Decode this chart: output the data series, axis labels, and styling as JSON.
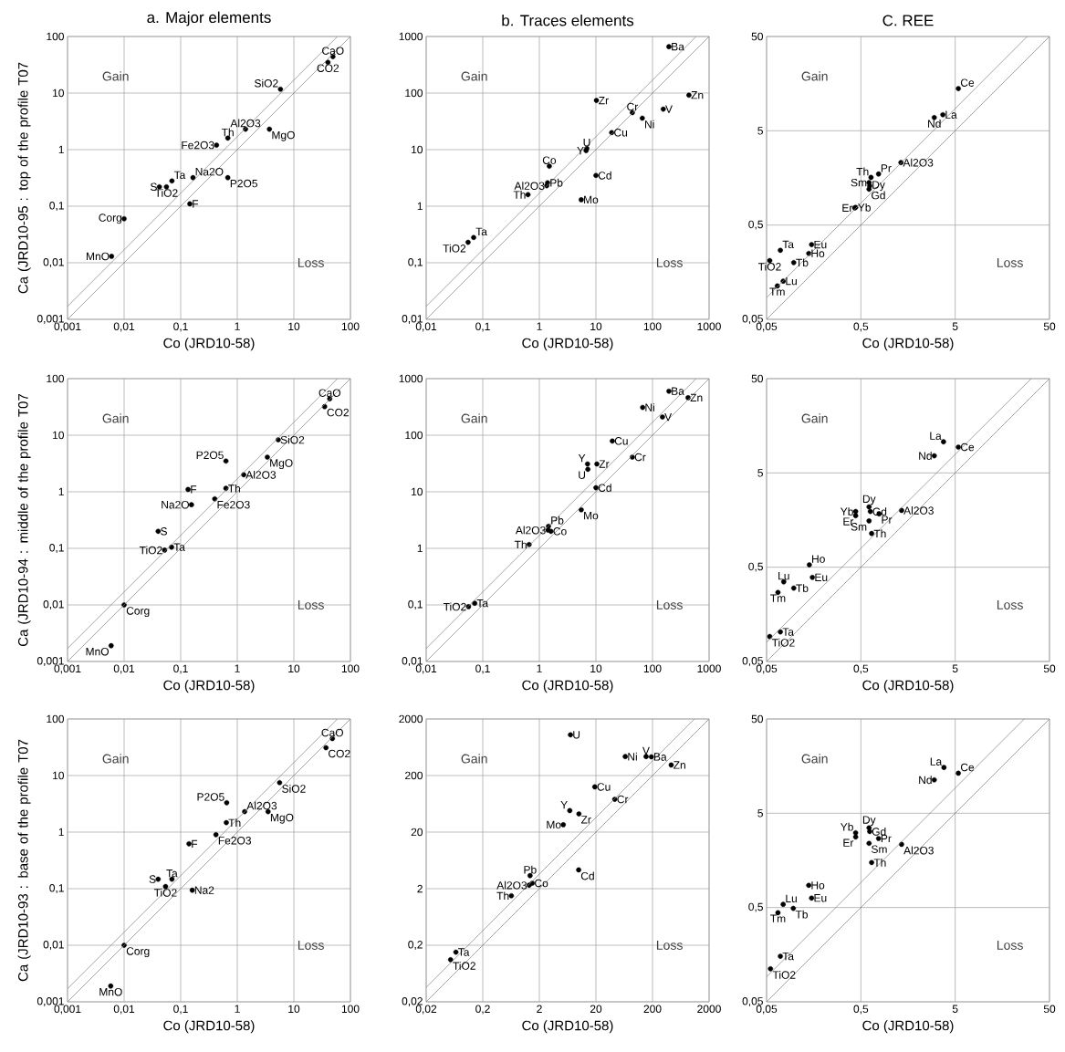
{
  "chart_data": [
    {
      "type": "scatter",
      "title": "a. Major elements",
      "xlabel": "Co (JRD10-58)",
      "ylabel": "Ca (JRD10-95 : top of the profile T07",
      "log": "xy",
      "grid": true,
      "marker": "circle",
      "xlim": [
        0.001,
        100
      ],
      "ylim": [
        0.001,
        100
      ],
      "xticks": [
        {
          "value": 0.001,
          "label": "0,001"
        },
        {
          "value": 0.01,
          "label": "0,01"
        },
        {
          "value": 0.1,
          "label": "0,1"
        },
        1,
        10,
        100
      ],
      "yticks": [
        {
          "value": 0.001,
          "label": "0,001"
        },
        {
          "value": 0.01,
          "label": "0,01"
        },
        {
          "value": 0.1,
          "label": "0,1"
        },
        1,
        10,
        100
      ],
      "series": [
        {
          "color": "#000000",
          "x": [
            49,
            40,
            5.8,
            1.4,
            3.7,
            0.68,
            0.43,
            0.165,
            0.68,
            0.07,
            0.056,
            0.042,
            0.145,
            0.01,
            0.006
          ],
          "values": [
            44,
            35,
            11.7,
            2.3,
            2.3,
            1.6,
            1.2,
            0.32,
            0.32,
            0.28,
            0.22,
            0.22,
            0.11,
            0.06,
            0.013
          ]
        },
        {
          "type": "line",
          "color": "#808080",
          "marker": "none",
          "x": [
            0.001,
            100
          ],
          "values": [
            0.001,
            100
          ]
        },
        {
          "type": "line",
          "color": "#808080",
          "marker": "none",
          "x": [
            0.001,
            59
          ],
          "values": [
            0.0017,
            100
          ]
        }
      ],
      "annotations": [
        "Gain",
        "Loss",
        {
          "text": "CaO",
          "x": 49,
          "y": 44
        },
        {
          "text": "CO2",
          "x": 40,
          "y": 35
        },
        {
          "text": "SiO2",
          "x": 5.8,
          "y": 11.7
        },
        {
          "text": "Al2O3",
          "x": 1.4,
          "y": 2.3
        },
        {
          "text": "MgO",
          "x": 3.7,
          "y": 2.3
        },
        {
          "text": "Th",
          "x": 0.68,
          "y": 1.6
        },
        {
          "text": "Fe2O3",
          "x": 0.43,
          "y": 1.2
        },
        {
          "text": "Na2O",
          "x": 0.165,
          "y": 0.32
        },
        {
          "text": "P2O5",
          "x": 0.68,
          "y": 0.32
        },
        {
          "text": "Ta",
          "x": 0.07,
          "y": 0.28
        },
        {
          "text": "TiO2",
          "x": 0.056,
          "y": 0.22
        },
        {
          "text": "S",
          "x": 0.042,
          "y": 0.22
        },
        {
          "text": "F",
          "x": 0.145,
          "y": 0.11
        },
        {
          "text": "Corg",
          "x": 0.01,
          "y": 0.06
        },
        {
          "text": "MnO",
          "x": 0.006,
          "y": 0.013
        }
      ]
    },
    {
      "type": "scatter",
      "title": "b. Traces elements",
      "xlabel": "Co (JRD10-58)",
      "log": "xy",
      "grid": true,
      "marker": "circle",
      "xlim": [
        0.01,
        1000
      ],
      "ylim": [
        0.01,
        1000
      ],
      "xticks": [
        {
          "value": 0.01,
          "label": "0,01"
        },
        {
          "value": 0.1,
          "label": "0,1"
        },
        1,
        10,
        100,
        1000
      ],
      "yticks": [
        {
          "value": 0.01,
          "label": "0,01"
        },
        {
          "value": 0.1,
          "label": "0,1"
        },
        1,
        10,
        100,
        1000
      ],
      "series": [
        {
          "color": "#000000",
          "x": [
            195,
            440,
            155,
            10.2,
            44,
            66,
            19,
            6.9,
            6.7,
            1.5,
            10,
            1.4,
            1.35,
            0.63,
            5.5,
            0.069,
            0.055
          ],
          "values": [
            660,
            92,
            52,
            74,
            45,
            36,
            20,
            10.5,
            9.6,
            5.1,
            3.5,
            2.6,
            2.3,
            1.6,
            1.3,
            0.28,
            0.23
          ]
        },
        {
          "type": "line",
          "color": "#808080",
          "marker": "none",
          "x": [
            0.01,
            1000
          ],
          "values": [
            0.01,
            1000
          ]
        },
        {
          "type": "line",
          "color": "#808080",
          "marker": "none",
          "x": [
            0.01,
            590
          ],
          "values": [
            0.017,
            1000
          ]
        }
      ],
      "annotations": [
        "Gain",
        "Loss",
        {
          "text": "Ba",
          "x": 195,
          "y": 660
        },
        {
          "text": "Zn",
          "x": 440,
          "y": 92
        },
        {
          "text": "V",
          "x": 155,
          "y": 52
        },
        {
          "text": "Zr",
          "x": 10.2,
          "y": 74
        },
        {
          "text": "Cr",
          "x": 44,
          "y": 45
        },
        {
          "text": "Ni",
          "x": 66,
          "y": 36
        },
        {
          "text": "Cu",
          "x": 19,
          "y": 20
        },
        {
          "text": "U",
          "x": 6.9,
          "y": 10.5
        },
        {
          "text": "Y",
          "x": 6.7,
          "y": 9.6
        },
        {
          "text": "Co",
          "x": 1.5,
          "y": 5.1
        },
        {
          "text": "Cd",
          "x": 10,
          "y": 3.5
        },
        {
          "text": "Pb",
          "x": 1.4,
          "y": 2.6
        },
        {
          "text": "Al2O3",
          "x": 1.35,
          "y": 2.3
        },
        {
          "text": "Th",
          "x": 0.63,
          "y": 1.6
        },
        {
          "text": "Mo",
          "x": 5.5,
          "y": 1.3
        },
        {
          "text": "Ta",
          "x": 0.069,
          "y": 0.28
        },
        {
          "text": "TiO2",
          "x": 0.055,
          "y": 0.23
        }
      ]
    },
    {
      "type": "scatter",
      "title": "C. REE",
      "xlabel": "Co (JRD10-58)",
      "log": "xy",
      "grid": true,
      "marker": "circle",
      "xlim": [
        0.05,
        50
      ],
      "ylim": [
        0.05,
        50
      ],
      "xticks": [
        {
          "value": 0.05,
          "label": "0,05"
        },
        {
          "value": 0.5,
          "label": "0,5"
        },
        5,
        50
      ],
      "yticks": [
        {
          "value": 0.05,
          "label": "0,05"
        },
        {
          "value": 0.5,
          "label": "0,5"
        },
        5,
        50
      ],
      "series": [
        {
          "color": "#000000",
          "x": [
            5.4,
            3.7,
            3.0,
            1.33,
            0.77,
            0.64,
            0.61,
            0.62,
            0.61,
            0.43,
            0.44,
            0.07,
            0.15,
            0.14,
            0.054,
            0.097,
            0.075,
            0.065
          ],
          "values": [
            14,
            7.4,
            6.9,
            2.3,
            1.74,
            1.6,
            1.41,
            1.3,
            1.2,
            0.76,
            0.77,
            0.27,
            0.31,
            0.25,
            0.21,
            0.2,
            0.127,
            0.113
          ]
        },
        {
          "type": "line",
          "color": "#808080",
          "marker": "none",
          "x": [
            0.05,
            50
          ],
          "values": [
            0.05,
            50
          ]
        },
        {
          "type": "line",
          "color": "#808080",
          "marker": "none",
          "x": [
            0.05,
            29
          ],
          "values": [
            0.085,
            50
          ]
        }
      ],
      "annotations": [
        "Gain",
        "Loss",
        {
          "text": "Ce",
          "x": 5.4,
          "y": 14
        },
        {
          "text": "La",
          "x": 3.7,
          "y": 7.4
        },
        {
          "text": "Nd",
          "x": 3.0,
          "y": 6.9
        },
        {
          "text": "Al2O3",
          "x": 1.33,
          "y": 2.3
        },
        {
          "text": "Pr",
          "x": 0.77,
          "y": 1.74
        },
        {
          "text": "Th",
          "x": 0.64,
          "y": 1.6
        },
        {
          "text": "Sm",
          "x": 0.61,
          "y": 1.41
        },
        {
          "text": "Dy",
          "x": 0.62,
          "y": 1.3
        },
        {
          "text": "Gd",
          "x": 0.61,
          "y": 1.2
        },
        {
          "text": "Er",
          "x": 0.43,
          "y": 0.76
        },
        {
          "text": "Yb",
          "x": 0.44,
          "y": 0.77
        },
        {
          "text": "Ta",
          "x": 0.07,
          "y": 0.27
        },
        {
          "text": "Eu",
          "x": 0.15,
          "y": 0.31
        },
        {
          "text": "Ho",
          "x": 0.14,
          "y": 0.25
        },
        {
          "text": "TiO2",
          "x": 0.054,
          "y": 0.21
        },
        {
          "text": "Tb",
          "x": 0.097,
          "y": 0.2
        },
        {
          "text": "Lu",
          "x": 0.075,
          "y": 0.127
        },
        {
          "text": "Tm",
          "x": 0.065,
          "y": 0.113
        }
      ]
    },
    {
      "type": "scatter",
      "xlabel": "Co (JRD10-58)",
      "ylabel": "Ca (JRD10-94 : middle of the profile T07",
      "log": "xy",
      "grid": true,
      "marker": "circle",
      "xlim": [
        0.001,
        100
      ],
      "ylim": [
        0.001,
        100
      ],
      "xticks": [
        {
          "value": 0.001,
          "label": "0,001"
        },
        {
          "value": 0.01,
          "label": "0,01"
        },
        {
          "value": 0.1,
          "label": "0,1"
        },
        1,
        10,
        100
      ],
      "yticks": [
        {
          "value": 0.001,
          "label": "0,001"
        },
        {
          "value": 0.01,
          "label": "0,01"
        },
        {
          "value": 0.1,
          "label": "0,1"
        },
        1,
        10,
        100
      ],
      "series": [
        {
          "color": "#000000",
          "x": [
            43,
            35,
            5.3,
            3.4,
            0.63,
            1.3,
            0.135,
            0.63,
            0.4,
            0.155,
            0.04,
            0.069,
            0.052,
            0.01,
            0.0059
          ],
          "values": [
            44,
            32,
            8.3,
            4.1,
            3.5,
            2.0,
            1.1,
            1.15,
            0.75,
            0.59,
            0.2,
            0.105,
            0.093,
            0.01,
            0.0019
          ]
        },
        {
          "type": "line",
          "color": "#808080",
          "marker": "none",
          "x": [
            0.001,
            100
          ],
          "values": [
            0.001,
            100
          ]
        },
        {
          "type": "line",
          "color": "#808080",
          "marker": "none",
          "x": [
            0.001,
            59
          ],
          "values": [
            0.0017,
            100
          ]
        }
      ],
      "annotations": [
        "Gain",
        "Loss",
        {
          "text": "CaO",
          "x": 43,
          "y": 44
        },
        {
          "text": "CO2",
          "x": 35,
          "y": 32
        },
        {
          "text": "SiO2",
          "x": 5.3,
          "y": 8.3
        },
        {
          "text": "MgO",
          "x": 3.4,
          "y": 4.1
        },
        {
          "text": "P2O5",
          "x": 0.63,
          "y": 3.5
        },
        {
          "text": "Al2O3",
          "x": 1.3,
          "y": 2.0
        },
        {
          "text": "F",
          "x": 0.135,
          "y": 1.1
        },
        {
          "text": "Th",
          "x": 0.63,
          "y": 1.15
        },
        {
          "text": "Fe2O3",
          "x": 0.4,
          "y": 0.75
        },
        {
          "text": "Na2O",
          "x": 0.155,
          "y": 0.59
        },
        {
          "text": "S",
          "x": 0.04,
          "y": 0.2
        },
        {
          "text": "Ta",
          "x": 0.069,
          "y": 0.105
        },
        {
          "text": "TiO2",
          "x": 0.052,
          "y": 0.093
        },
        {
          "text": "Corg",
          "x": 0.01,
          "y": 0.01
        },
        {
          "text": "MnO",
          "x": 0.0059,
          "y": 0.0019
        }
      ]
    },
    {
      "type": "scatter",
      "xlabel": "Co (JRD10-58)",
      "log": "xy",
      "grid": true,
      "marker": "circle",
      "xlim": [
        0.01,
        1000
      ],
      "ylim": [
        0.01,
        1000
      ],
      "xticks": [
        {
          "value": 0.01,
          "label": "0,01"
        },
        {
          "value": 0.1,
          "label": "0,1"
        },
        1,
        10,
        100,
        1000
      ],
      "yticks": [
        {
          "value": 0.01,
          "label": "0,01"
        },
        {
          "value": 0.1,
          "label": "0,1"
        },
        1,
        10,
        100,
        1000
      ],
      "series": [
        {
          "color": "#000000",
          "x": [
            195,
            425,
            67,
            150,
            19.5,
            44,
            7.1,
            10.4,
            7.2,
            10,
            5.5,
            1.45,
            1.42,
            1.6,
            0.66,
            0.072,
            0.056
          ],
          "values": [
            600,
            460,
            310,
            210,
            79,
            41,
            31,
            31,
            25,
            11.8,
            4.8,
            2.45,
            2.1,
            2.0,
            1.17,
            0.107,
            0.093
          ]
        },
        {
          "type": "line",
          "color": "#808080",
          "marker": "none",
          "x": [
            0.01,
            1000
          ],
          "values": [
            0.01,
            1000
          ]
        },
        {
          "type": "line",
          "color": "#808080",
          "marker": "none",
          "x": [
            0.01,
            590
          ],
          "values": [
            0.017,
            1000
          ]
        }
      ],
      "annotations": [
        "Gain",
        "Loss",
        {
          "text": "Ba",
          "x": 195,
          "y": 600
        },
        {
          "text": "Zn",
          "x": 425,
          "y": 460
        },
        {
          "text": "Ni",
          "x": 67,
          "y": 310
        },
        {
          "text": "V",
          "x": 150,
          "y": 210
        },
        {
          "text": "Cu",
          "x": 19.5,
          "y": 79
        },
        {
          "text": "Cr",
          "x": 44,
          "y": 41
        },
        {
          "text": "Y",
          "x": 7.1,
          "y": 31
        },
        {
          "text": "Zr",
          "x": 10.4,
          "y": 31
        },
        {
          "text": "U",
          "x": 7.2,
          "y": 25
        },
        {
          "text": "Cd",
          "x": 10,
          "y": 11.8
        },
        {
          "text": "Mo",
          "x": 5.5,
          "y": 4.8
        },
        {
          "text": "Pb",
          "x": 1.45,
          "y": 2.45
        },
        {
          "text": "Al2O3",
          "x": 1.42,
          "y": 2.1
        },
        {
          "text": "Co",
          "x": 1.6,
          "y": 2.0
        },
        {
          "text": "Th",
          "x": 0.66,
          "y": 1.17
        },
        {
          "text": "Ta",
          "x": 0.072,
          "y": 0.107
        },
        {
          "text": "TiO2",
          "x": 0.056,
          "y": 0.093
        }
      ]
    },
    {
      "type": "scatter",
      "xlabel": "Co (JRD10-58)",
      "log": "xy",
      "grid": true,
      "marker": "circle",
      "xlim": [
        0.05,
        50
      ],
      "ylim": [
        0.05,
        50
      ],
      "xticks": [
        {
          "value": 0.05,
          "label": "0,05"
        },
        {
          "value": 0.5,
          "label": "0,5"
        },
        5,
        50
      ],
      "yticks": [
        {
          "value": 0.05,
          "label": "0,05"
        },
        {
          "value": 0.5,
          "label": "0,5"
        },
        5,
        50
      ],
      "series": [
        {
          "color": "#000000",
          "x": [
            3.76,
            5.4,
            3.0,
            0.61,
            0.63,
            1.35,
            0.44,
            0.44,
            0.78,
            0.61,
            0.65,
            0.142,
            0.153,
            0.076,
            0.097,
            0.066,
            0.07,
            0.054
          ],
          "values": [
            10.7,
            9.4,
            7.6,
            2.18,
            1.95,
            2.0,
            1.95,
            1.76,
            1.84,
            1.55,
            1.14,
            0.53,
            0.39,
            0.35,
            0.3,
            0.27,
            0.103,
            0.092
          ]
        },
        {
          "type": "line",
          "color": "#808080",
          "marker": "none",
          "x": [
            0.05,
            50
          ],
          "values": [
            0.05,
            50
          ]
        },
        {
          "type": "line",
          "color": "#808080",
          "marker": "none",
          "x": [
            0.05,
            32
          ],
          "values": [
            0.08,
            50
          ]
        }
      ],
      "annotations": [
        "Gain",
        "Loss",
        {
          "text": "La",
          "x": 3.76,
          "y": 10.7
        },
        {
          "text": "Ce",
          "x": 5.4,
          "y": 9.4
        },
        {
          "text": "Nd",
          "x": 3.0,
          "y": 7.6
        },
        {
          "text": "Dy",
          "x": 0.61,
          "y": 2.18
        },
        {
          "text": "Gd",
          "x": 0.63,
          "y": 1.95
        },
        {
          "text": "Al2O3",
          "x": 1.35,
          "y": 2.0
        },
        {
          "text": "Yb",
          "x": 0.44,
          "y": 1.95
        },
        {
          "text": "Er",
          "x": 0.44,
          "y": 1.76
        },
        {
          "text": "Pr",
          "x": 0.78,
          "y": 1.84
        },
        {
          "text": "Sm",
          "x": 0.61,
          "y": 1.55
        },
        {
          "text": "Th",
          "x": 0.65,
          "y": 1.14
        },
        {
          "text": "Ho",
          "x": 0.142,
          "y": 0.53
        },
        {
          "text": "Eu",
          "x": 0.153,
          "y": 0.39
        },
        {
          "text": "Lu",
          "x": 0.076,
          "y": 0.35
        },
        {
          "text": "Tb",
          "x": 0.097,
          "y": 0.3
        },
        {
          "text": "Tm",
          "x": 0.066,
          "y": 0.27
        },
        {
          "text": "Ta",
          "x": 0.07,
          "y": 0.103
        },
        {
          "text": "TiO2",
          "x": 0.054,
          "y": 0.092
        }
      ]
    },
    {
      "type": "scatter",
      "xlabel": "Co (JRD10-58)",
      "ylabel": "Ca (JRD10-93 : base of the profile T07",
      "log": "xy",
      "grid": true,
      "marker": "circle",
      "xlim": [
        0.001,
        100
      ],
      "ylim": [
        0.001,
        100
      ],
      "xticks": [
        {
          "value": 0.001,
          "label": "0,001"
        },
        {
          "value": 0.01,
          "label": "0,01"
        },
        {
          "value": 0.1,
          "label": "0,1"
        },
        1,
        10,
        100
      ],
      "yticks": [
        {
          "value": 0.001,
          "label": "0,001"
        },
        {
          "value": 0.01,
          "label": "0,01"
        },
        {
          "value": 0.1,
          "label": "0,1"
        },
        1,
        10,
        100
      ],
      "series": [
        {
          "color": "#000000",
          "x": [
            48,
            37,
            5.6,
            0.65,
            1.35,
            3.5,
            0.64,
            0.42,
            0.14,
            0.04,
            0.07,
            0.054,
            0.16,
            0.01,
            0.0058
          ],
          "values": [
            45,
            31,
            7.5,
            3.3,
            2.3,
            2.3,
            1.47,
            0.9,
            0.62,
            0.147,
            0.147,
            0.109,
            0.094,
            0.01,
            0.0019
          ]
        },
        {
          "type": "line",
          "color": "#808080",
          "marker": "none",
          "x": [
            0.001,
            100
          ],
          "values": [
            0.001,
            100
          ]
        },
        {
          "type": "line",
          "color": "#808080",
          "marker": "none",
          "x": [
            0.001,
            59
          ],
          "values": [
            0.0017,
            100
          ]
        }
      ],
      "annotations": [
        "Gain",
        "Loss",
        {
          "text": "CaO",
          "x": 48,
          "y": 45
        },
        {
          "text": "CO2",
          "x": 37,
          "y": 31
        },
        {
          "text": "SiO2",
          "x": 5.6,
          "y": 7.5
        },
        {
          "text": "P2O5",
          "x": 0.65,
          "y": 3.3
        },
        {
          "text": "Al2O3",
          "x": 1.35,
          "y": 2.3
        },
        {
          "text": "MgO",
          "x": 3.5,
          "y": 2.3
        },
        {
          "text": "Th",
          "x": 0.64,
          "y": 1.47
        },
        {
          "text": "Fe2O3",
          "x": 0.42,
          "y": 0.9
        },
        {
          "text": "F",
          "x": 0.14,
          "y": 0.62
        },
        {
          "text": "S",
          "x": 0.04,
          "y": 0.147
        },
        {
          "text": "Ta",
          "x": 0.07,
          "y": 0.147
        },
        {
          "text": "TiO2",
          "x": 0.054,
          "y": 0.109
        },
        {
          "text": "Na2",
          "x": 0.16,
          "y": 0.094
        },
        {
          "text": "Corg",
          "x": 0.01,
          "y": 0.01
        },
        {
          "text": "MnO",
          "x": 0.0058,
          "y": 0.0019
        }
      ]
    },
    {
      "type": "scatter",
      "xlabel": "Co (JRD10-58)",
      "log": "xy",
      "grid": true,
      "marker": "circle",
      "xlim": [
        0.02,
        2000
      ],
      "ylim": [
        0.02,
        2000
      ],
      "xticks": [
        {
          "value": 0.02,
          "label": "0,02"
        },
        {
          "value": 0.2,
          "label": "0,2"
        },
        2,
        20,
        200,
        2000
      ],
      "yticks": [
        {
          "value": 0.02,
          "label": "0,02"
        },
        {
          "value": 0.2,
          "label": "0,2"
        },
        2,
        20,
        200,
        2000
      ],
      "series": [
        {
          "color": "#000000",
          "x": [
            7.1,
            66,
            154,
            191,
            428,
            19.1,
            43,
            6.9,
            10,
            5.3,
            9.9,
            1.37,
            1.5,
            1.32,
            0.64,
            0.067,
            0.054
          ],
          "values": [
            1050,
            433,
            433,
            428,
            307,
            126,
            76,
            48,
            42,
            27,
            4.3,
            3.4,
            2.5,
            2.3,
            1.5,
            0.151,
            0.111
          ]
        },
        {
          "type": "line",
          "color": "#808080",
          "marker": "none",
          "x": [
            0.02,
            2000
          ],
          "values": [
            0.02,
            2000
          ]
        },
        {
          "type": "line",
          "color": "#808080",
          "marker": "none",
          "x": [
            0.02,
            1100
          ],
          "values": [
            0.036,
            2000
          ]
        }
      ],
      "annotations": [
        "Gain",
        "Loss",
        {
          "text": "U",
          "x": 7.1,
          "y": 1050
        },
        {
          "text": "Ni",
          "x": 66,
          "y": 433
        },
        {
          "text": "V",
          "x": 154,
          "y": 433
        },
        {
          "text": "Ba",
          "x": 191,
          "y": 428
        },
        {
          "text": "Zn",
          "x": 428,
          "y": 307
        },
        {
          "text": "Cu",
          "x": 19.1,
          "y": 126
        },
        {
          "text": "Cr",
          "x": 43,
          "y": 76
        },
        {
          "text": "Y",
          "x": 6.9,
          "y": 48
        },
        {
          "text": "Zr",
          "x": 10,
          "y": 42
        },
        {
          "text": "Mo",
          "x": 5.3,
          "y": 27
        },
        {
          "text": "Cd",
          "x": 9.9,
          "y": 4.3
        },
        {
          "text": "Pb",
          "x": 1.37,
          "y": 3.4
        },
        {
          "text": "Co",
          "x": 1.5,
          "y": 2.5
        },
        {
          "text": "Al2O3",
          "x": 1.32,
          "y": 2.3
        },
        {
          "text": "Th",
          "x": 0.64,
          "y": 1.5
        },
        {
          "text": "Ta",
          "x": 0.067,
          "y": 0.151
        },
        {
          "text": "TiO2",
          "x": 0.054,
          "y": 0.111
        }
      ]
    },
    {
      "type": "scatter",
      "xlabel": "Co (JRD10-58)",
      "log": "xy",
      "grid": true,
      "marker": "circle",
      "xlim": [
        0.05,
        50
      ],
      "ylim": [
        0.05,
        50
      ],
      "xticks": [
        {
          "value": 0.05,
          "label": "0,05"
        },
        {
          "value": 0.5,
          "label": "0,5"
        },
        5,
        50
      ],
      "yticks": [
        {
          "value": 0.05,
          "label": "0,05"
        },
        {
          "value": 0.5,
          "label": "0,5"
        },
        5,
        50
      ],
      "series": [
        {
          "color": "#000000",
          "x": [
            3.8,
            5.4,
            3.0,
            0.61,
            0.62,
            0.44,
            0.44,
            0.77,
            0.61,
            1.35,
            0.65,
            0.14,
            0.15,
            0.075,
            0.096,
            0.066,
            0.07,
            0.055
          ],
          "values": [
            15.3,
            13.3,
            11.3,
            3.5,
            3.2,
            3.1,
            2.8,
            2.7,
            2.4,
            2.34,
            1.5,
            0.86,
            0.63,
            0.54,
            0.49,
            0.44,
            0.152,
            0.112
          ]
        },
        {
          "type": "line",
          "color": "#808080",
          "marker": "none",
          "x": [
            0.05,
            50
          ],
          "values": [
            0.05,
            50
          ]
        },
        {
          "type": "line",
          "color": "#808080",
          "marker": "none",
          "x": [
            0.05,
            27
          ],
          "values": [
            0.092,
            50
          ]
        }
      ],
      "annotations": [
        "Gain",
        "Loss",
        {
          "text": "La",
          "x": 3.8,
          "y": 15.3
        },
        {
          "text": "Ce",
          "x": 5.4,
          "y": 13.3
        },
        {
          "text": "Nd",
          "x": 3.0,
          "y": 11.3
        },
        {
          "text": "Dy",
          "x": 0.61,
          "y": 3.5
        },
        {
          "text": "Gd",
          "x": 0.62,
          "y": 3.2
        },
        {
          "text": "Yb",
          "x": 0.44,
          "y": 3.1
        },
        {
          "text": "Er",
          "x": 0.44,
          "y": 2.8
        },
        {
          "text": "Pr",
          "x": 0.77,
          "y": 2.7
        },
        {
          "text": "Sm",
          "x": 0.61,
          "y": 2.4
        },
        {
          "text": "Al2O3",
          "x": 1.35,
          "y": 2.34
        },
        {
          "text": "Th",
          "x": 0.65,
          "y": 1.5
        },
        {
          "text": "Ho",
          "x": 0.14,
          "y": 0.86
        },
        {
          "text": "Eu",
          "x": 0.15,
          "y": 0.63
        },
        {
          "text": "Lu",
          "x": 0.075,
          "y": 0.54
        },
        {
          "text": "Tb",
          "x": 0.096,
          "y": 0.49
        },
        {
          "text": "Tm",
          "x": 0.066,
          "y": 0.44
        },
        {
          "text": "Ta",
          "x": 0.07,
          "y": 0.152
        },
        {
          "text": "TiO2",
          "x": 0.055,
          "y": 0.112
        }
      ]
    }
  ]
}
